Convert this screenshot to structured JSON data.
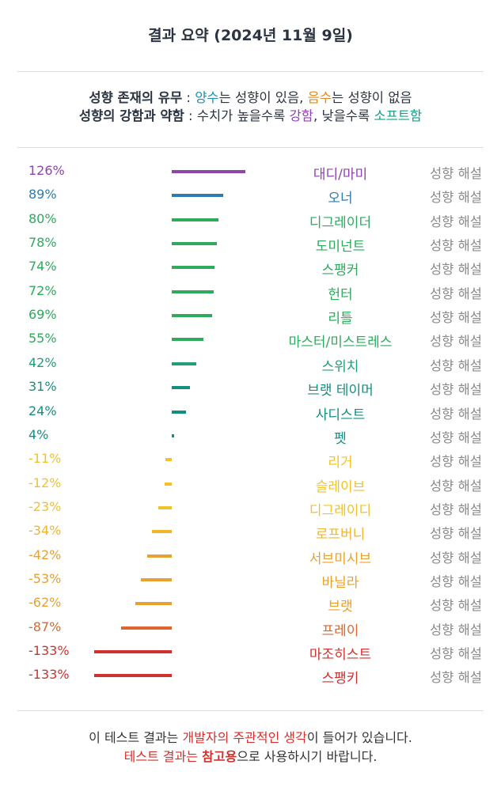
{
  "header": {
    "title": "결과 요약 (2024년 11월 9일)"
  },
  "legend": [
    [
      {
        "text": "성향 존재의 유무",
        "bold": true
      },
      {
        "text": " : "
      },
      {
        "text": "양수",
        "color": "#1f8fb0"
      },
      {
        "text": "는 성향이 있음, "
      },
      {
        "text": "음수",
        "color": "#e08a1e"
      },
      {
        "text": "는 성향이 없음"
      }
    ],
    [
      {
        "text": "성향의 강함과 약함",
        "bold": true
      },
      {
        "text": " : 수치가 높을수록 "
      },
      {
        "text": "강함",
        "color": "#8e44ad"
      },
      {
        "text": ", 낮을수록 "
      },
      {
        "text": "소프트함",
        "color": "#16a085"
      }
    ]
  ],
  "chart_data": {
    "type": "bar",
    "categories": [
      "대디/마미",
      "오너",
      "디그레이더",
      "도미넌트",
      "스팽커",
      "헌터",
      "리틀",
      "마스터/미스트레스",
      "스위치",
      "브랫 테이머",
      "사디스트",
      "펫",
      "리거",
      "슬레이브",
      "디그레이디",
      "로프버니",
      "서브미시브",
      "바닐라",
      "브랫",
      "프레이",
      "마조히스트",
      "스팽키"
    ],
    "values": [
      126,
      89,
      80,
      78,
      74,
      72,
      69,
      55,
      42,
      31,
      24,
      4,
      -11,
      -12,
      -23,
      -34,
      -42,
      -53,
      -62,
      -87,
      -133,
      -133
    ],
    "value_labels": [
      "126%",
      "89%",
      "80%",
      "78%",
      "74%",
      "72%",
      "69%",
      "55%",
      "42%",
      "31%",
      "24%",
      "4%",
      "-11%",
      "-12%",
      "-23%",
      "-34%",
      "-42%",
      "-53%",
      "-62%",
      "-87%",
      "-133%",
      "-133%"
    ],
    "colors": [
      "#8e44ad",
      "#2e7bb0",
      "#2eaa5c",
      "#2eaa5c",
      "#2eaa5c",
      "#2eaa5c",
      "#2eaa5c",
      "#2eaa5c",
      "#1f9e7a",
      "#138f80",
      "#138f80",
      "#138f80",
      "#f0c22b",
      "#f0c22b",
      "#f0c22b",
      "#f0b52b",
      "#e8a030",
      "#e8a030",
      "#e8a030",
      "#d9672e",
      "#d0312d",
      "#d0312d"
    ]
  },
  "detail_link": "성향 해설",
  "footer": [
    [
      {
        "text": "이 테스트 결과는 "
      },
      {
        "text": "개발자의 주관적인 생각",
        "color": "#d0312d"
      },
      {
        "text": "이 들어가 있습니다."
      }
    ],
    [
      {
        "text": "테스트 결과는 ",
        "color": "#d0312d"
      },
      {
        "text": "참고용",
        "color": "#d0312d",
        "bold": true
      },
      {
        "text": "으로 사용하시기 바랍니다."
      }
    ]
  ]
}
